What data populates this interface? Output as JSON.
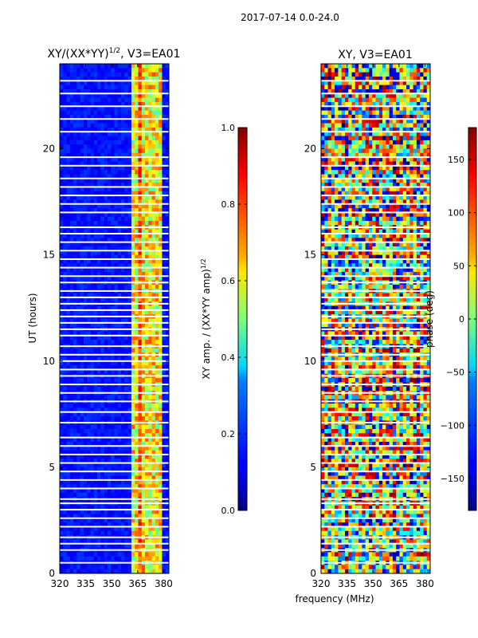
{
  "figure": {
    "suptitle": "2017-07-14 0.0-24.0"
  },
  "chart_data": [
    {
      "type": "heatmap",
      "title_main": "XY/(XX*YY)",
      "title_exp": "1/2",
      "title_suffix": ", V3=EA01",
      "xlabel": "",
      "ylabel": "UT (hours)",
      "xlim": [
        320,
        383
      ],
      "ylim": [
        0,
        24
      ],
      "xticks": [
        320,
        335,
        350,
        365,
        380
      ],
      "yticks": [
        0,
        5,
        10,
        15,
        20
      ],
      "colorbar": {
        "label_main": "XY amp. / (XX*YY amp)",
        "label_exp": "1/2",
        "range": [
          0.0,
          1.0
        ],
        "ticks": [
          "0.0",
          "0.2",
          "0.4",
          "0.6",
          "0.8",
          "1.0"
        ],
        "tick_values": [
          0.0,
          0.2,
          0.4,
          0.6,
          0.8,
          1.0
        ]
      }
    },
    {
      "type": "heatmap",
      "title_main": "XY, V3=EA01",
      "xlabel": "frequency (MHz)",
      "ylabel": "",
      "xlim": [
        320,
        383
      ],
      "ylim": [
        0,
        24
      ],
      "xticks": [
        320,
        335,
        350,
        365,
        380
      ],
      "yticks": [
        0,
        5,
        10,
        15,
        20
      ],
      "colorbar": {
        "label_main": "phase (deg)",
        "range": [
          -180,
          180
        ],
        "ticks": [
          "−150",
          "−100",
          "−50",
          "0",
          "50",
          "100",
          "150"
        ],
        "tick_values": [
          -150,
          -100,
          -50,
          0,
          50,
          100,
          150
        ]
      }
    }
  ]
}
